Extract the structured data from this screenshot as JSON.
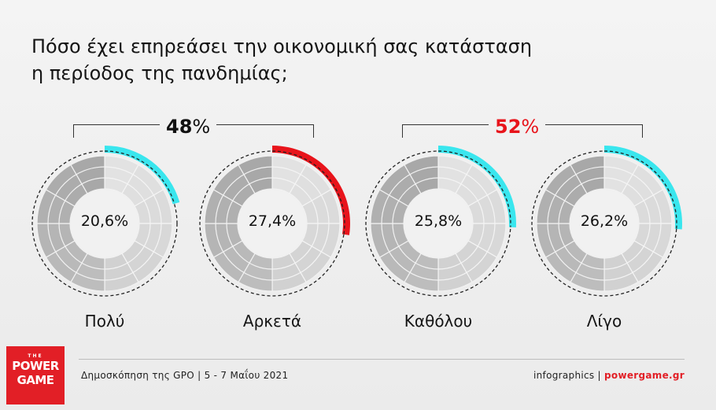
{
  "title": {
    "line1": "Πόσο έχει επηρεάσει την οικονομική σας κατάσταση",
    "line2": "η περίοδος της πανδημίας;"
  },
  "groups": [
    {
      "value": "48",
      "unit": "%",
      "color": "#111111"
    },
    {
      "value": "52",
      "unit": "%",
      "color": "#e8141b"
    }
  ],
  "chart_data": {
    "type": "pie",
    "title": "Πόσο έχει επηρεάσει την οικονομική σας κατάσταση η περίοδος της πανδημίας;",
    "categories": [
      "Πολύ",
      "Αρκετά",
      "Καθόλου",
      "Λίγο"
    ],
    "values": [
      20.6,
      27.4,
      25.8,
      26.2
    ],
    "value_labels": [
      "20,6%",
      "27,4%",
      "25,8%",
      "26,2%"
    ],
    "unit": "%",
    "arc_colors": [
      "#39e6ee",
      "#e8141b",
      "#39e6ee",
      "#39e6ee"
    ],
    "groups": [
      {
        "label": "48%",
        "categories": [
          "Πολύ",
          "Αρκετά"
        ]
      },
      {
        "label": "52%",
        "categories": [
          "Καθόλου",
          "Λίγο"
        ]
      }
    ],
    "legend": "none",
    "grid": false
  },
  "footer": {
    "logo_the": "THE",
    "logo_line1": "POWER",
    "logo_line2": "GAME",
    "source": "Δημοσκόπηση της GPO | 5 - 7 Μαΐου 2021",
    "credit_prefix": "infographics | ",
    "credit_domain": "powergame.gr"
  }
}
